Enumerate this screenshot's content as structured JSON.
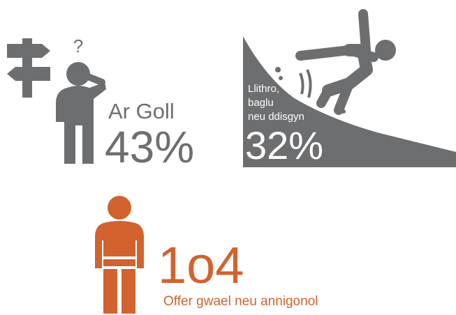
{
  "stats": [
    {
      "label": "Ar Goll",
      "value": "43%"
    },
    {
      "label_lines": [
        "Llithro,",
        "baglu",
        "neu ddisgyn"
      ],
      "value": "32%"
    },
    {
      "value": "1o4",
      "label": "Offer gwael neu annigonol"
    }
  ]
}
